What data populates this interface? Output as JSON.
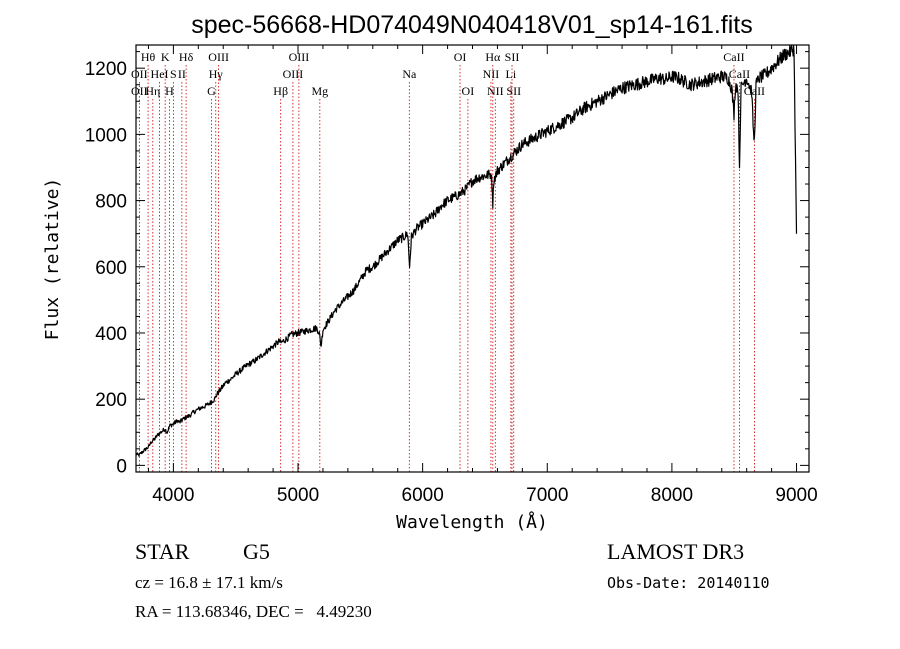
{
  "chart_data": {
    "type": "line",
    "title": "spec-56668-HD074049N040418V01_sp14-161.fits",
    "xlabel": "Wavelength (Å)",
    "ylabel": "Flux (relative)",
    "xlim": [
      3700,
      9100
    ],
    "ylim": [
      -20,
      1270
    ],
    "xticks": [
      4000,
      5000,
      6000,
      7000,
      8000,
      9000
    ],
    "yticks": [
      0,
      200,
      400,
      600,
      800,
      1000,
      1200
    ],
    "grid": false,
    "series": [
      {
        "name": "flux",
        "color": "#000000",
        "x": [
          3700,
          3720,
          3750,
          3780,
          3800,
          3820,
          3850,
          3880,
          3900,
          3930,
          3950,
          3970,
          4000,
          4030,
          4050,
          4080,
          4100,
          4130,
          4160,
          4200,
          4230,
          4260,
          4300,
          4330,
          4350,
          4380,
          4420,
          4460,
          4500,
          4550,
          4600,
          4650,
          4700,
          4750,
          4800,
          4850,
          4860,
          4900,
          4950,
          5000,
          5050,
          5100,
          5150,
          5170,
          5185,
          5200,
          5250,
          5300,
          5350,
          5400,
          5450,
          5500,
          5550,
          5600,
          5650,
          5700,
          5750,
          5800,
          5850,
          5880,
          5895,
          5910,
          5950,
          6000,
          6050,
          6100,
          6150,
          6200,
          6250,
          6300,
          6350,
          6400,
          6450,
          6500,
          6550,
          6560,
          6563,
          6570,
          6600,
          6650,
          6700,
          6750,
          6800,
          6850,
          6900,
          6950,
          7000,
          7050,
          7100,
          7150,
          7200,
          7250,
          7300,
          7350,
          7400,
          7450,
          7500,
          7550,
          7600,
          7650,
          7700,
          7750,
          7800,
          7850,
          7900,
          7950,
          8000,
          8050,
          8100,
          8150,
          8200,
          8250,
          8300,
          8350,
          8400,
          8450,
          8480,
          8498,
          8510,
          8530,
          8542,
          8555,
          8580,
          8600,
          8640,
          8655,
          8662,
          8675,
          8700,
          8750,
          8800,
          8850,
          8900,
          8950,
          8980,
          9000
        ],
        "values": [
          35,
          30,
          40,
          50,
          55,
          70,
          80,
          95,
          100,
          110,
          100,
          120,
          125,
          135,
          130,
          140,
          145,
          150,
          160,
          170,
          175,
          180,
          190,
          200,
          215,
          230,
          250,
          260,
          275,
          290,
          305,
          315,
          330,
          345,
          360,
          375,
          370,
          380,
          395,
          400,
          405,
          410,
          415,
          400,
          360,
          410,
          440,
          470,
          490,
          510,
          530,
          560,
          590,
          600,
          620,
          640,
          660,
          680,
          690,
          700,
          600,
          690,
          715,
          730,
          745,
          760,
          785,
          800,
          810,
          820,
          835,
          860,
          870,
          875,
          880,
          830,
          790,
          860,
          890,
          910,
          930,
          950,
          970,
          980,
          990,
          1000,
          1010,
          1020,
          1030,
          1040,
          1050,
          1065,
          1080,
          1090,
          1100,
          1110,
          1120,
          1130,
          1140,
          1145,
          1150,
          1155,
          1160,
          1165,
          1170,
          1165,
          1175,
          1170,
          1160,
          1150,
          1155,
          1160,
          1165,
          1170,
          1175,
          1170,
          1140,
          1060,
          1150,
          1140,
          900,
          1140,
          1160,
          1170,
          1130,
          1000,
          980,
          1150,
          1170,
          1180,
          1200,
          1220,
          1240,
          1250,
          1260,
          700
        ]
      }
    ],
    "line_marks": [
      {
        "label": "Hθ",
        "x": 3797,
        "row": 0
      },
      {
        "label": "K",
        "x": 3934,
        "row": 0
      },
      {
        "label": "Hδ",
        "x": 4102,
        "row": 0
      },
      {
        "label": "OIII",
        "x": 4363,
        "row": 0
      },
      {
        "label": "OIII",
        "x": 5007,
        "row": 0
      },
      {
        "label": "OI",
        "x": 6300,
        "row": 0
      },
      {
        "label": "Hα",
        "x": 6563,
        "row": 0
      },
      {
        "label": "SII",
        "x": 6717,
        "row": 0
      },
      {
        "label": "CaII",
        "x": 8498,
        "row": 0
      },
      {
        "label": "OII",
        "x": 3727,
        "row": 1
      },
      {
        "label": "HeI",
        "x": 3889,
        "row": 1
      },
      {
        "label": "S",
        "x": 4000,
        "row": 1
      },
      {
        "label": "II",
        "x": 4068,
        "row": 1
      },
      {
        "label": "Hγ",
        "x": 4340,
        "row": 1
      },
      {
        "label": "OIII",
        "x": 4959,
        "row": 1
      },
      {
        "label": "Na",
        "x": 5893,
        "row": 1
      },
      {
        "label": "NII",
        "x": 6548,
        "row": 1
      },
      {
        "label": "Li",
        "x": 6708,
        "row": 1
      },
      {
        "label": "CaII",
        "x": 8542,
        "row": 1
      },
      {
        "label": "OII",
        "x": 3727,
        "row": 2
      },
      {
        "label": "Hη",
        "x": 3835,
        "row": 2
      },
      {
        "label": "H",
        "x": 3968,
        "row": 2
      },
      {
        "label": "G",
        "x": 4305,
        "row": 2
      },
      {
        "label": "Hβ",
        "x": 4861,
        "row": 2
      },
      {
        "label": "Mg",
        "x": 5175,
        "row": 2
      },
      {
        "label": "OI",
        "x": 6363,
        "row": 2
      },
      {
        "label": "NII",
        "x": 6583,
        "row": 2
      },
      {
        "label": "SII",
        "x": 6731,
        "row": 2
      },
      {
        "label": "CaII",
        "x": 8662,
        "row": 2
      }
    ],
    "line_mark_color": "#cc0000"
  },
  "info": {
    "object_class": "STAR",
    "subclass": "G5",
    "cz": "cz = 16.8 ± 17.1 km/s",
    "coords": "RA = 113.68346, DEC =   4.49230",
    "survey": "LAMOST DR3",
    "obs_date": "Obs-Date: 20140110"
  }
}
